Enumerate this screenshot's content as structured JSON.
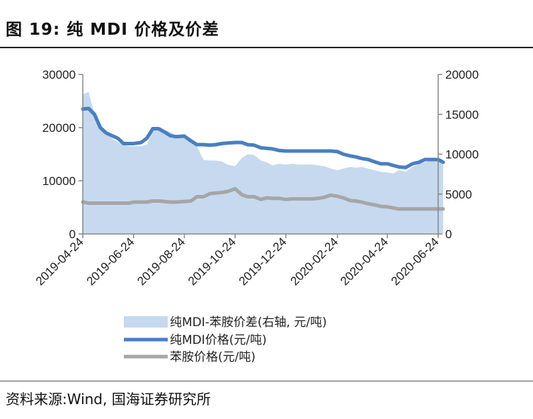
{
  "header": {
    "title": "图 19:  纯 MDI 价格及价差"
  },
  "footer": {
    "source": "资料来源:Wind, 国海证券研究所"
  },
  "colors": {
    "spread_fill": "#c6d9ef",
    "mdi_line": "#4a7fc1",
    "aniline_line": "#a6a6a6",
    "axis": "#888888"
  },
  "chart_data": {
    "type": "line",
    "title": "纯 MDI 价格及价差",
    "x": [
      "2019-04-24",
      "2019-05-01",
      "2019-05-08",
      "2019-05-15",
      "2019-05-22",
      "2019-05-29",
      "2019-06-05",
      "2019-06-12",
      "2019-06-19",
      "2019-06-24",
      "2019-07-03",
      "2019-07-10",
      "2019-07-17",
      "2019-07-24",
      "2019-07-31",
      "2019-08-07",
      "2019-08-14",
      "2019-08-24",
      "2019-09-01",
      "2019-09-08",
      "2019-09-16",
      "2019-09-24",
      "2019-10-01",
      "2019-10-08",
      "2019-10-15",
      "2019-10-24",
      "2019-11-01",
      "2019-11-08",
      "2019-11-16",
      "2019-11-24",
      "2019-12-01",
      "2019-12-08",
      "2019-12-16",
      "2019-12-24",
      "2020-01-01",
      "2020-01-08",
      "2020-01-16",
      "2020-01-24",
      "2020-02-01",
      "2020-02-08",
      "2020-02-16",
      "2020-02-24",
      "2020-03-02",
      "2020-03-10",
      "2020-03-17",
      "2020-03-24",
      "2020-04-01",
      "2020-04-08",
      "2020-04-16",
      "2020-04-24",
      "2020-05-01",
      "2020-05-08",
      "2020-05-16",
      "2020-05-24",
      "2020-06-01",
      "2020-06-08",
      "2020-06-16",
      "2020-06-24",
      "2020-06-30"
    ],
    "x_ticks": [
      "2019-04-24",
      "2019-06-24",
      "2019-08-24",
      "2019-10-24",
      "2019-12-24",
      "2020-02-24",
      "2020-04-24",
      "2020-06-24"
    ],
    "y_left": {
      "min": 0,
      "max": 30000,
      "ticks": [
        0,
        10000,
        20000,
        30000
      ]
    },
    "y_right": {
      "min": 0,
      "max": 20000,
      "ticks": [
        0,
        5000,
        10000,
        15000,
        20000
      ]
    },
    "series": [
      {
        "name": "纯MDI-苯胺价差(右轴, 元/吨)",
        "type": "area",
        "axis": "right",
        "values": [
          17500,
          17800,
          15000,
          13500,
          12500,
          12000,
          11500,
          11200,
          11000,
          11000,
          11000,
          11200,
          13000,
          13200,
          13000,
          12800,
          12300,
          12000,
          11500,
          11000,
          9300,
          9200,
          9200,
          9100,
          8700,
          8500,
          9500,
          10000,
          9900,
          9200,
          9000,
          8600,
          8800,
          8700,
          8800,
          8700,
          8700,
          8700,
          8600,
          8500,
          8200,
          8000,
          8200,
          8400,
          8300,
          8400,
          8200,
          8000,
          7800,
          7700,
          7600,
          8000,
          7800,
          8400,
          8800,
          9000,
          9200,
          9300,
          9300
        ]
      },
      {
        "name": "纯MDI价格(元/吨)",
        "type": "line",
        "axis": "left",
        "values": [
          23500,
          23600,
          22500,
          20000,
          19000,
          18500,
          18000,
          17000,
          17000,
          17000,
          17200,
          18000,
          19800,
          19800,
          19200,
          18500,
          18300,
          18400,
          17500,
          16800,
          16800,
          16700,
          16800,
          17000,
          17100,
          17200,
          17200,
          16800,
          16700,
          16200,
          16100,
          16000,
          15700,
          15600,
          15600,
          15600,
          15600,
          15600,
          15600,
          15600,
          15600,
          15500,
          15000,
          14700,
          14500,
          14200,
          14000,
          13600,
          13200,
          13200,
          12900,
          12600,
          12500,
          13200,
          13500,
          14000,
          14000,
          14000,
          13500
        ]
      },
      {
        "name": "苯胺价格(元/吨)",
        "type": "line",
        "axis": "left",
        "values": [
          6000,
          5800,
          5800,
          5800,
          5800,
          5800,
          5800,
          5800,
          5800,
          6000,
          6000,
          6000,
          6200,
          6200,
          6100,
          6000,
          6000,
          6100,
          6200,
          7000,
          7000,
          7600,
          7700,
          7800,
          8000,
          8500,
          7400,
          7000,
          7000,
          6500,
          6800,
          6700,
          6700,
          6500,
          6600,
          6600,
          6600,
          6600,
          6700,
          6900,
          7300,
          7100,
          6800,
          6300,
          6200,
          6000,
          5700,
          5500,
          5200,
          5100,
          4900,
          4700,
          4700,
          4700,
          4700,
          4700,
          4700,
          4700,
          4700
        ]
      }
    ]
  }
}
